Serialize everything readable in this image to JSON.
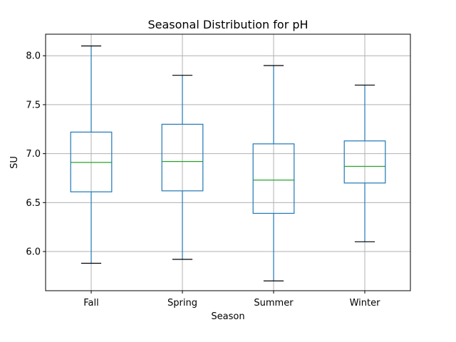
{
  "chart_data": {
    "type": "box",
    "title": "Seasonal Distribution for pH",
    "xlabel": "Season",
    "ylabel": "SU",
    "ylim": [
      5.6,
      8.22
    ],
    "yticks": [
      "6.0",
      "6.5",
      "7.0",
      "7.5",
      "8.0"
    ],
    "grid": true,
    "colors": {
      "box": "#1f77b4",
      "median": "#2ca02c",
      "cap": "#000000",
      "grid": "#b0b0b0"
    },
    "categories": [
      "Fall",
      "Spring",
      "Summer",
      "Winter"
    ],
    "boxes": [
      {
        "name": "Fall",
        "whisker_low": 5.88,
        "q1": 6.61,
        "median": 6.91,
        "q3": 7.22,
        "whisker_high": 8.1
      },
      {
        "name": "Spring",
        "whisker_low": 5.92,
        "q1": 6.62,
        "median": 6.92,
        "q3": 7.3,
        "whisker_high": 7.8
      },
      {
        "name": "Summer",
        "whisker_low": 5.7,
        "q1": 6.39,
        "median": 6.73,
        "q3": 7.1,
        "whisker_high": 7.9
      },
      {
        "name": "Winter",
        "whisker_low": 6.1,
        "q1": 6.7,
        "median": 6.87,
        "q3": 7.13,
        "whisker_high": 7.7
      }
    ]
  }
}
